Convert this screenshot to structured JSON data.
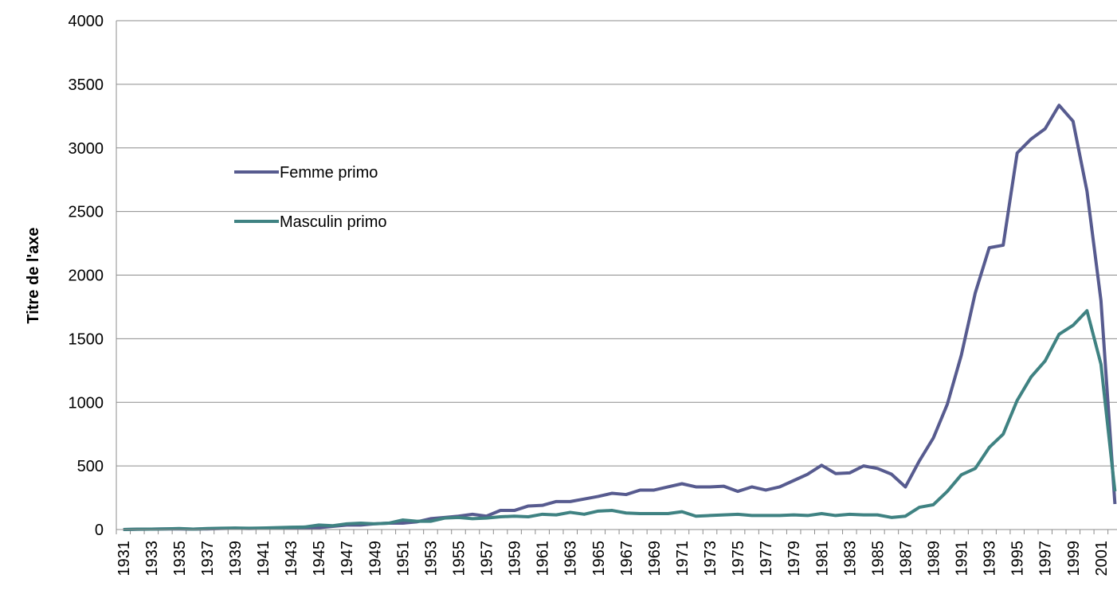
{
  "chart_data": {
    "type": "line",
    "y_label": "Titre de l'axe",
    "categories": [
      "1931",
      null,
      "1933",
      null,
      "1935",
      null,
      "1937",
      null,
      "1939",
      null,
      "1941",
      null,
      "1943",
      null,
      "1945",
      null,
      "1947",
      null,
      "1949",
      null,
      "1951",
      null,
      "1953",
      null,
      "1955",
      null,
      "1957",
      null,
      "1959",
      null,
      "1961",
      null,
      "1963",
      null,
      "1965",
      null,
      "1967",
      null,
      "1969",
      null,
      "1971",
      null,
      "1973",
      null,
      "1975",
      null,
      "1977",
      null,
      "1979",
      null,
      "1981",
      null,
      "1983",
      null,
      "1985",
      null,
      "1987",
      null,
      "1989",
      null,
      "1991",
      null,
      "1993",
      null,
      "1995",
      null,
      "1997",
      null,
      "1999",
      null,
      "2001",
      null
    ],
    "series": [
      {
        "name": "Femme primo",
        "color": "#575b8f",
        "values": [
          0,
          2,
          3,
          5,
          5,
          3,
          5,
          8,
          10,
          8,
          10,
          12,
          15,
          15,
          15,
          25,
          35,
          35,
          45,
          50,
          50,
          60,
          85,
          95,
          105,
          120,
          105,
          150,
          150,
          185,
          190,
          220,
          220,
          240,
          260,
          285,
          275,
          310,
          310,
          335,
          360,
          335,
          335,
          340,
          300,
          335,
          310,
          335,
          385,
          435,
          505,
          440,
          445,
          500,
          480,
          435,
          335,
          540,
          720,
          985,
          1370,
          1860,
          2215,
          2235,
          2960,
          3070,
          3150,
          3335,
          3210,
          2660,
          1800,
          200
        ]
      },
      {
        "name": "Masculin primo",
        "color": "#3f8282",
        "values": [
          0,
          2,
          3,
          5,
          8,
          3,
          8,
          10,
          12,
          10,
          12,
          15,
          18,
          20,
          35,
          30,
          45,
          50,
          45,
          50,
          75,
          65,
          65,
          90,
          95,
          85,
          90,
          100,
          105,
          100,
          120,
          115,
          135,
          120,
          145,
          150,
          130,
          125,
          125,
          125,
          140,
          105,
          110,
          115,
          120,
          110,
          110,
          110,
          115,
          110,
          125,
          110,
          120,
          115,
          115,
          95,
          105,
          175,
          195,
          300,
          430,
          480,
          645,
          750,
          1015,
          1200,
          1325,
          1535,
          1605,
          1720,
          1300,
          300
        ]
      }
    ],
    "ylim": [
      0,
      4000
    ],
    "yticks": [
      0,
      500,
      1000,
      1500,
      2000,
      2500,
      3000,
      3500,
      4000
    ],
    "grid": true
  }
}
